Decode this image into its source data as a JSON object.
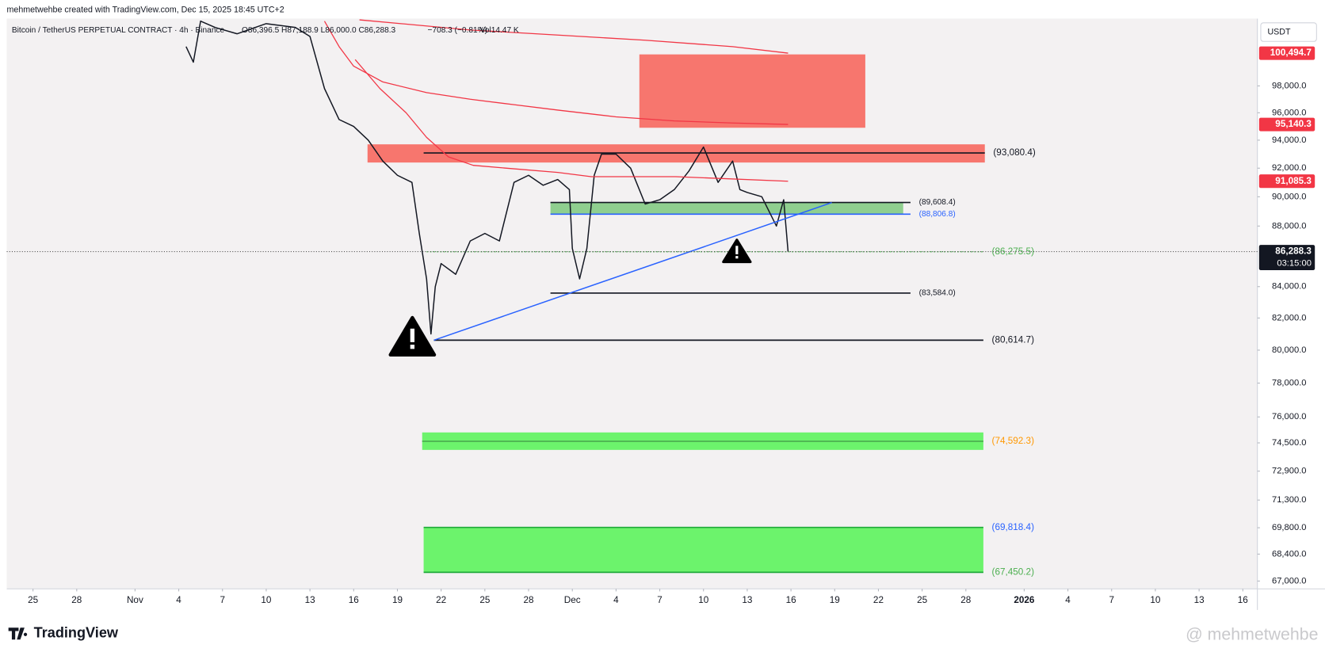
{
  "header": "mehmetwehbe created with TradingView.com, Dec 15, 2025 18:45 UTC+2",
  "brand": "TradingView",
  "watermark": "@ mehmetwehbe",
  "currency": "USDT",
  "chart_data": {
    "type": "line",
    "title": "Bitcoin / TetherUS PERPETUAL CONTRACT · 4h · Binance",
    "ohlc": "O86,396.5 H87,188.9 L86,000.0 C86,288.3",
    "change": "−708.3 (−0.81%)",
    "volume": "Vol14.47 K",
    "log": true,
    "xlim": [
      -1.8,
      84
    ],
    "ylim": [
      66600,
      103200
    ],
    "xticks": [
      {
        "value": 0,
        "label": "25"
      },
      {
        "value": 3,
        "label": "28"
      },
      {
        "value": 7,
        "label": "Nov"
      },
      {
        "value": 10,
        "label": "4"
      },
      {
        "value": 13,
        "label": "7"
      },
      {
        "value": 16,
        "label": "10"
      },
      {
        "value": 19,
        "label": "13"
      },
      {
        "value": 22,
        "label": "16"
      },
      {
        "value": 25,
        "label": "19"
      },
      {
        "value": 28,
        "label": "22"
      },
      {
        "value": 31,
        "label": "25"
      },
      {
        "value": 34,
        "label": "28"
      },
      {
        "value": 37,
        "label": "Dec"
      },
      {
        "value": 40,
        "label": "4"
      },
      {
        "value": 43,
        "label": "7"
      },
      {
        "value": 46,
        "label": "10"
      },
      {
        "value": 49,
        "label": "13"
      },
      {
        "value": 52,
        "label": "16"
      },
      {
        "value": 55,
        "label": "19"
      },
      {
        "value": 58,
        "label": "22"
      },
      {
        "value": 61,
        "label": "25"
      },
      {
        "value": 64,
        "label": "28"
      },
      {
        "value": 68,
        "label": "2026"
      },
      {
        "value": 71,
        "label": "4"
      },
      {
        "value": 74,
        "label": "7"
      },
      {
        "value": 77,
        "label": "10"
      },
      {
        "value": 80,
        "label": "13"
      },
      {
        "value": 83,
        "label": "16"
      }
    ],
    "yticks": [
      {
        "value": 98000,
        "label": "98,000.0"
      },
      {
        "value": 96000,
        "label": "96,000.0"
      },
      {
        "value": 94000,
        "label": "94,000.0"
      },
      {
        "value": 92000,
        "label": "92,000.0"
      },
      {
        "value": 90000,
        "label": "90,000.0"
      },
      {
        "value": 88000,
        "label": "88,000.0"
      },
      {
        "value": 84000,
        "label": "84,000.0"
      },
      {
        "value": 82000,
        "label": "82,000.0"
      },
      {
        "value": 80000,
        "label": "80,000.0"
      },
      {
        "value": 78000,
        "label": "78,000.0"
      },
      {
        "value": 76000,
        "label": "76,000.0"
      },
      {
        "value": 74500,
        "label": "74,500.0"
      },
      {
        "value": 72900,
        "label": "72,900.0"
      },
      {
        "value": 71300,
        "label": "71,300.0"
      },
      {
        "value": 69800,
        "label": "69,800.0"
      },
      {
        "value": 68400,
        "label": "68,400.0"
      },
      {
        "value": 67000,
        "label": "67,000.0"
      }
    ],
    "series": [
      {
        "color": "#131722",
        "x": [
          10.5,
          11,
          11.5,
          12.5,
          14,
          16,
          18,
          19,
          20,
          21,
          22,
          23,
          24,
          25,
          26,
          26.5,
          27,
          27.3,
          27.6,
          28,
          29,
          30,
          31,
          32,
          33,
          34,
          35,
          36,
          36.8,
          37,
          37.5,
          38,
          38.5,
          39,
          40,
          41,
          42,
          43,
          44,
          45,
          46,
          47,
          48,
          48.5,
          49,
          50,
          51,
          51.5,
          51.8
        ],
        "values": [
          101000,
          99800,
          103000,
          102500,
          102000,
          102800,
          102500,
          101800,
          97800,
          95500,
          95000,
          94000,
          92500,
          91500,
          91000,
          87500,
          84500,
          81000,
          84000,
          85500,
          84800,
          87000,
          87500,
          87000,
          91000,
          91500,
          90800,
          91200,
          90500,
          86500,
          84500,
          86500,
          91500,
          93000,
          93000,
          92000,
          89500,
          89800,
          90500,
          91800,
          93500,
          91000,
          92500,
          90500,
          90300,
          90000,
          88000,
          89800,
          86288.3
        ]
      },
      {
        "color": "#f23645",
        "x": [
          22.4,
          30,
          36,
          42,
          48,
          51.8
        ],
        "values": [
          103100,
          102300,
          101900,
          101500,
          101000,
          100494.7
        ]
      },
      {
        "color": "#f23645",
        "x": [
          20,
          21,
          22,
          24,
          27,
          30,
          33,
          36,
          40,
          44,
          48,
          51.8
        ],
        "values": [
          103000,
          101000,
          99500,
          98300,
          97500,
          97000,
          96600,
          96200,
          95700,
          95400,
          95250,
          95140.3
        ]
      },
      {
        "color": "#f23645",
        "x": [
          22.1,
          23.8,
          25.6,
          27,
          28.5,
          30.2,
          32.5,
          36,
          38.3,
          44.1,
          51.8
        ],
        "values": [
          100000,
          97800,
          96000,
          94200,
          92800,
          92200,
          92000,
          91700,
          91400,
          91400,
          91085.3
        ]
      }
    ],
    "trendline": {
      "color": "#2962ff",
      "x": [
        27.5,
        54.8
      ],
      "values": [
        80614.7,
        89600
      ]
    },
    "zones": [
      {
        "from": 41.6,
        "to": 57.1,
        "low": 94900,
        "high": 100400,
        "color": "#f7766e"
      },
      {
        "from": 22.95,
        "to": 65.3,
        "low": 92400,
        "high": 93700,
        "color": "#f7766e"
      },
      {
        "from": 35.5,
        "to": 59.7,
        "low": 88806.8,
        "high": 89608.4,
        "color": "#8fcf8f"
      },
      {
        "from": 26.7,
        "to": 65.2,
        "low": 74100,
        "high": 75100,
        "color": "#6cf36c"
      },
      {
        "from": 26.8,
        "to": 65.2,
        "low": 67450.2,
        "high": 69818.4,
        "color": "#6cf36c"
      }
    ],
    "levels": [
      {
        "value": 93080.4,
        "label": "(93,080.4)",
        "from": 26.8,
        "to": 65.3,
        "color": "#131722",
        "label_color": "#131722"
      },
      {
        "value": 89608.4,
        "label": "(89,608.4)",
        "from": 35.5,
        "to": 60.2,
        "color": "#131722",
        "label_color": "#131722"
      },
      {
        "value": 88806.8,
        "label": "(88,806.8)",
        "from": 35.5,
        "to": 60.2,
        "color": "#2962ff",
        "label_color": "#2962ff"
      },
      {
        "value": 86275.5,
        "label": "(86,275.5)",
        "from": 27,
        "to": 65.2,
        "color": "#4caf50",
        "label_color": "#4caf50"
      },
      {
        "value": 83584.0,
        "label": "(83,584.0)",
        "from": 35.5,
        "to": 60.2,
        "color": "#131722",
        "label_color": "#131722"
      },
      {
        "value": 80614.7,
        "label": "(80,614.7)",
        "from": 27.5,
        "to": 65.2,
        "color": "#131722",
        "label_color": "#131722"
      },
      {
        "value": 74592.3,
        "label": "(74,592.3)",
        "from": 26.7,
        "to": 65.2,
        "color": "#4caf50",
        "label_color": "#ff9800"
      },
      {
        "value": 69818.4,
        "label": "(69,818.4)",
        "from": 26.8,
        "to": 65.2,
        "color": "#1fa83a",
        "label_color": "#2962ff"
      },
      {
        "value": 67450.2,
        "label": "(67,450.2)",
        "from": 26.8,
        "to": 65.2,
        "color": "#1fa83a",
        "label_color": "#4caf50"
      }
    ],
    "badges": [
      {
        "value": 100494.7,
        "label": "100,494.7",
        "color": "#f23645"
      },
      {
        "value": 95140.3,
        "label": "95,140.3",
        "color": "#f23645"
      },
      {
        "value": 91085.3,
        "label": "91,085.3",
        "color": "#f23645"
      }
    ],
    "current": {
      "value": 86288.3,
      "label": "86,288.3",
      "time": "03:15:00",
      "color": "#131722"
    }
  }
}
